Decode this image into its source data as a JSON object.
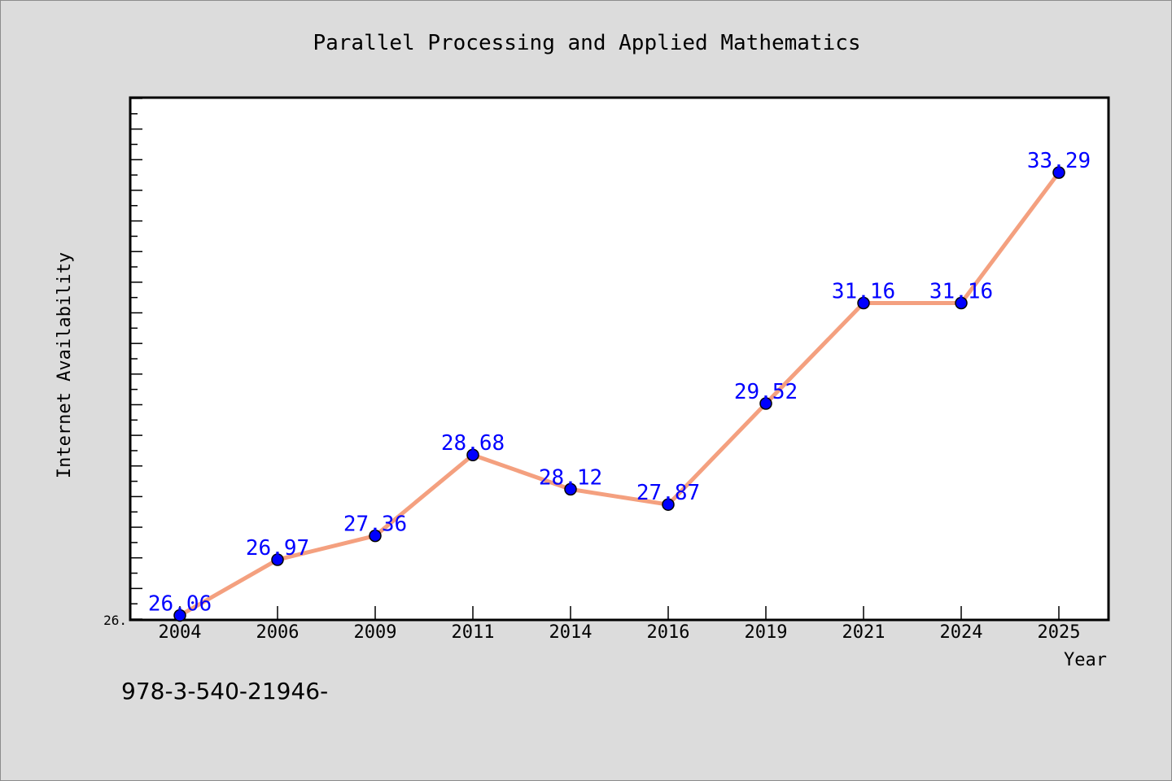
{
  "chart_data": {
    "type": "line",
    "title": "Parallel Processing and Applied Mathematics",
    "xlabel": "Year",
    "ylabel": "Internet Availability",
    "categories": [
      "2004",
      "2006",
      "2009",
      "2011",
      "2014",
      "2016",
      "2019",
      "2021",
      "2024",
      "2025"
    ],
    "values": [
      26.06,
      26.97,
      27.36,
      28.68,
      28.12,
      27.87,
      29.52,
      31.16,
      31.16,
      33.29
    ],
    "data_labels": [
      "26.06",
      "26.97",
      "27.36",
      "28.68",
      "28.12",
      "27.87",
      "29.52",
      "31.16",
      "31.16",
      "33.29"
    ],
    "ylim": [
      26.0,
      34.5
    ],
    "y_tick_labels": [
      "26."
    ],
    "grid": false,
    "legend": "none",
    "colors": {
      "line": "#f4a07f",
      "marker": "#0000ff",
      "data_label": "#0000ff",
      "background": "#dcdcdc",
      "plot_area": "#ffffff"
    }
  },
  "footer_note": "978-3-540-21946-"
}
